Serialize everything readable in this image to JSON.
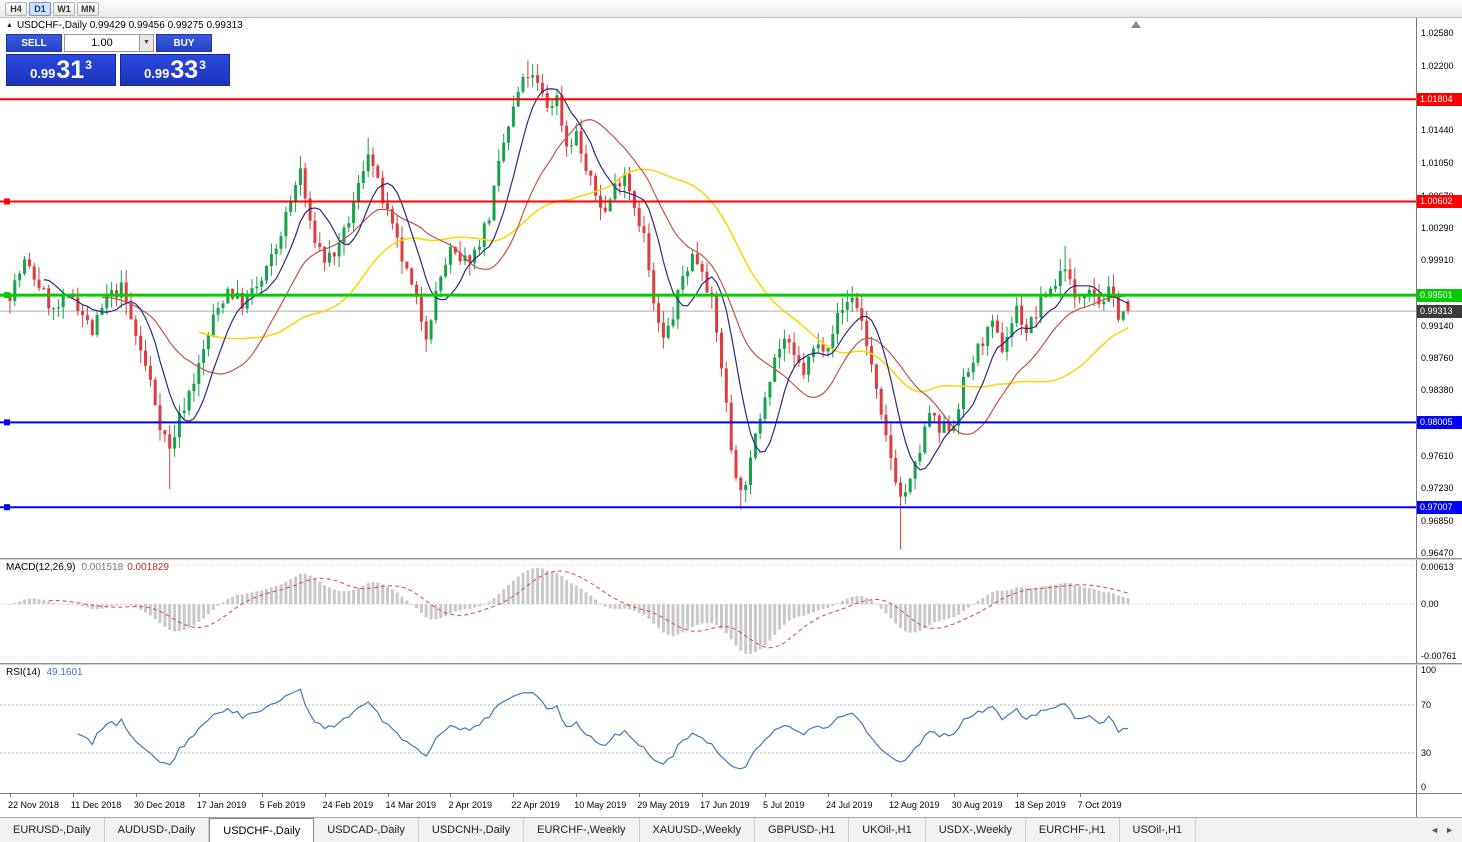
{
  "icons": {
    "collapse": "▲",
    "dropdown": "▼",
    "tab_prev": "◄",
    "tab_next": "►",
    "shift_marker": "▲"
  },
  "toolbar": {
    "timeframes": [
      {
        "label": "H4",
        "active": false
      },
      {
        "label": "D1",
        "active": true
      },
      {
        "label": "W1",
        "active": false
      },
      {
        "label": "MN",
        "active": false
      }
    ]
  },
  "chart": {
    "symbol": "USDCHF-",
    "period": "Daily",
    "title_line": "USDCHF-,Daily  0.99429 0.99456 0.99275 0.99313",
    "trade_panel": {
      "sell_label": "SELL",
      "buy_label": "BUY",
      "volume": "1.00",
      "sell_price_big": "0.99",
      "sell_price_pips": "31",
      "sell_price_pt": "3",
      "buy_price_big": "0.99",
      "buy_price_pips": "33",
      "buy_price_pt": "3"
    }
  },
  "indicators": {
    "macd": {
      "label": "MACD(12,26,9)",
      "value1": "0.001518",
      "value2": "0.001829",
      "axis_top": "0.00613",
      "axis_zero": "0.00",
      "axis_bottom": "-0.00761"
    },
    "rsi": {
      "label": "RSI(14)",
      "value": "49.1601",
      "levels": [
        100,
        70,
        30,
        0
      ]
    }
  },
  "price_axis": {
    "ticks": [
      "1.02580",
      "1.02200",
      "1.01440",
      "1.01050",
      "1.00670",
      "1.00290",
      "0.99910",
      "0.99140",
      "0.98760",
      "0.98380",
      "0.97610",
      "0.97230",
      "0.96850",
      "0.96470"
    ]
  },
  "levels": [
    {
      "price": 1.01804,
      "label": "1.01804",
      "color": "#ff0000",
      "width": 2,
      "marker": false
    },
    {
      "price": 1.00602,
      "label": "1.00602",
      "color": "#ff0000",
      "width": 2,
      "marker": true
    },
    {
      "price": 0.99501,
      "label": "0.99501",
      "color": "#00cc00",
      "width": 3,
      "marker": true
    },
    {
      "price": 0.98005,
      "label": "0.98005",
      "color": "#0000ff",
      "width": 2,
      "marker": true
    },
    {
      "price": 0.97007,
      "label": "0.97007",
      "color": "#0000ff",
      "width": 2,
      "marker": true
    }
  ],
  "current_price": {
    "price": 0.99313,
    "label": "0.99313",
    "badge_color": "#3a3a3a",
    "line_color": "#b0b0b0"
  },
  "time_axis": [
    "22 Nov 2018",
    "11 Dec 2018",
    "30 Dec 2018",
    "17 Jan 2019",
    "5 Feb 2019",
    "24 Feb 2019",
    "14 Mar 2019",
    "2 Apr 2019",
    "22 Apr 2019",
    "10 May 2019",
    "29 May 2019",
    "17 Jun 2019",
    "5 Jul 2019",
    "24 Jul 2019",
    "12 Aug 2019",
    "30 Aug 2019",
    "18 Sep 2019",
    "7 Oct 2019"
  ],
  "tabs": {
    "items": [
      {
        "label": "EURUSD-,Daily",
        "active": false
      },
      {
        "label": "AUDUSD-,Daily",
        "active": false
      },
      {
        "label": "USDCHF-,Daily",
        "active": true
      },
      {
        "label": "USDCAD-,Daily",
        "active": false
      },
      {
        "label": "USDCNH-,Daily",
        "active": false
      },
      {
        "label": "EURCHF-,Weekly",
        "active": false
      },
      {
        "label": "XAUUSD-,Weekly",
        "active": false
      },
      {
        "label": "GBPUSD-,H1",
        "active": false
      },
      {
        "label": "UKOil-,H1",
        "active": false
      },
      {
        "label": "USDX-,Weekly",
        "active": false
      },
      {
        "label": "EURCHF-,H1",
        "active": false
      },
      {
        "label": "USOil-,H1",
        "active": false
      }
    ]
  },
  "chart_data": {
    "type": "candlestick",
    "symbol": "USDCHF",
    "timeframe": "Daily",
    "candles_count": 232,
    "seed": 7,
    "y_range": [
      0.9641,
      1.0276
    ],
    "last_candle": {
      "o": 0.99429,
      "h": 0.99456,
      "l": 0.99275,
      "c": 0.99313
    },
    "price_path": [
      [
        0,
        0.9952
      ],
      [
        3,
        0.9988
      ],
      [
        6,
        0.9962
      ],
      [
        9,
        0.993
      ],
      [
        13,
        0.995
      ],
      [
        17,
        0.9906
      ],
      [
        20,
        0.9946
      ],
      [
        23,
        0.9958
      ],
      [
        26,
        0.9902
      ],
      [
        29,
        0.9848
      ],
      [
        31,
        0.98
      ],
      [
        33,
        0.9768
      ],
      [
        35,
        0.9806
      ],
      [
        37,
        0.9836
      ],
      [
        39,
        0.9866
      ],
      [
        42,
        0.9922
      ],
      [
        45,
        0.9958
      ],
      [
        48,
        0.994
      ],
      [
        52,
        0.9966
      ],
      [
        55,
        1.0006
      ],
      [
        58,
        1.006
      ],
      [
        60,
        1.0098
      ],
      [
        62,
        1.003
      ],
      [
        65,
        0.9992
      ],
      [
        68,
        1.0004
      ],
      [
        71,
        1.0056
      ],
      [
        74,
        1.0122
      ],
      [
        76,
        1.008
      ],
      [
        78,
        1.0044
      ],
      [
        80,
        1.001
      ],
      [
        83,
        0.9958
      ],
      [
        86,
        0.9906
      ],
      [
        89,
        0.9972
      ],
      [
        91,
        1.0002
      ],
      [
        93,
        0.9986
      ],
      [
        96,
        1.0
      ],
      [
        99,
        1.0044
      ],
      [
        102,
        1.0128
      ],
      [
        105,
        1.0188
      ],
      [
        107,
        1.021
      ],
      [
        109,
        1.0196
      ],
      [
        111,
        1.0172
      ],
      [
        113,
        1.0182
      ],
      [
        115,
        1.0126
      ],
      [
        117,
        1.014
      ],
      [
        119,
        1.0096
      ],
      [
        121,
        1.0068
      ],
      [
        123,
        1.0048
      ],
      [
        125,
        1.0078
      ],
      [
        127,
        1.0096
      ],
      [
        129,
        1.0056
      ],
      [
        131,
        1.002
      ],
      [
        133,
        0.9936
      ],
      [
        135,
        0.9896
      ],
      [
        137,
        0.9926
      ],
      [
        139,
        0.9972
      ],
      [
        141,
        0.9996
      ],
      [
        143,
        0.9984
      ],
      [
        145,
        0.994
      ],
      [
        147,
        0.9868
      ],
      [
        149,
        0.977
      ],
      [
        151,
        0.9716
      ],
      [
        153,
        0.9752
      ],
      [
        155,
        0.981
      ],
      [
        156,
        0.9836
      ],
      [
        158,
        0.9878
      ],
      [
        160,
        0.9898
      ],
      [
        162,
        0.9874
      ],
      [
        164,
        0.986
      ],
      [
        166,
        0.9886
      ],
      [
        169,
        0.9896
      ],
      [
        171,
        0.9924
      ],
      [
        174,
        0.995
      ],
      [
        176,
        0.992
      ],
      [
        178,
        0.9866
      ],
      [
        180,
        0.9802
      ],
      [
        182,
        0.976
      ],
      [
        184,
        0.9712
      ],
      [
        186,
        0.9728
      ],
      [
        188,
        0.9768
      ],
      [
        190,
        0.9812
      ],
      [
        192,
        0.9788
      ],
      [
        195,
        0.98
      ],
      [
        197,
        0.9846
      ],
      [
        199,
        0.9874
      ],
      [
        201,
        0.9898
      ],
      [
        203,
        0.9912
      ],
      [
        205,
        0.9888
      ],
      [
        208,
        0.9934
      ],
      [
        210,
        0.9908
      ],
      [
        212,
        0.9928
      ],
      [
        214,
        0.9952
      ],
      [
        216,
        0.9964
      ],
      [
        218,
        0.9988
      ],
      [
        220,
        0.9942
      ],
      [
        223,
        0.9964
      ],
      [
        225,
        0.9942
      ],
      [
        227,
        0.9952
      ],
      [
        229,
        0.993
      ],
      [
        231,
        0.9931
      ]
    ],
    "spikes": [
      {
        "i": 33,
        "l": 0.9722
      },
      {
        "i": 60,
        "h": 1.0108
      },
      {
        "i": 74,
        "h": 1.0135
      },
      {
        "i": 107,
        "h": 1.0226
      },
      {
        "i": 151,
        "l": 0.9698
      },
      {
        "i": 184,
        "l": 0.9651
      },
      {
        "i": 218,
        "h": 1.0008
      }
    ],
    "ma_periods": {
      "fast": 8,
      "mid": 20,
      "slow": 40
    },
    "colors": {
      "bull": "#18a24c",
      "bear": "#dd3d3d",
      "ma_fast": "#2a2a85",
      "ma_mid": "#c8504b",
      "ma_slow": "#ffd400",
      "macd_hist": "#c9c9c9",
      "macd_signal": "#d24a4a",
      "rsi_line": "#3e79c0"
    }
  }
}
